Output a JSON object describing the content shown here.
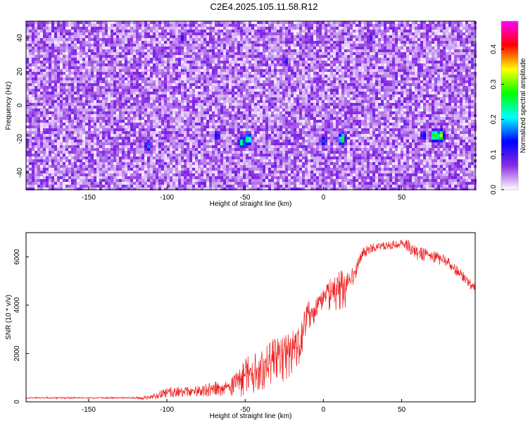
{
  "title": "C2E4.2025.105.11.58.R12",
  "chart_data": [
    {
      "type": "heatmap",
      "xlabel": "Height of straight line (km)",
      "ylabel": "Frequency (Hz)",
      "xlim": [
        -190,
        97
      ],
      "ylim": [
        -50,
        50
      ],
      "xticks": [
        -150,
        -100,
        -50,
        0,
        50
      ],
      "yticks": [
        -40,
        -20,
        0,
        20,
        40
      ],
      "colorbar": {
        "label": "Normalized spectral amplitude",
        "range": [
          0,
          0.48
        ],
        "ticks": [
          "0.0",
          "0.1",
          "0.2",
          "0.3",
          "0.4"
        ],
        "colormap": [
          "#ffffff",
          "#8a2be2",
          "#0000ff",
          "#00ffff",
          "#00ff00",
          "#ffff00",
          "#ff0000",
          "#ff00ff"
        ]
      },
      "features": {
        "background_amplitude": [
          0.02,
          0.08
        ],
        "hot_spots": [
          {
            "x": -112,
            "y": -24,
            "value": 0.18
          },
          {
            "x": -48,
            "y": -20,
            "value": 0.28
          },
          {
            "x": -52,
            "y": -22,
            "value": 0.26
          },
          {
            "x": -68,
            "y": -18,
            "value": 0.15
          },
          {
            "x": 12,
            "y": -20,
            "value": 0.3
          },
          {
            "x": 0,
            "y": -21,
            "value": 0.16
          },
          {
            "x": 64,
            "y": -18,
            "value": 0.15
          },
          {
            "x": 71,
            "y": -18,
            "value": 0.32
          },
          {
            "x": 75,
            "y": -18,
            "value": 0.34
          },
          {
            "x": -90,
            "y": 40,
            "value": 0.12
          },
          {
            "x": -24,
            "y": 26,
            "value": 0.12
          },
          {
            "x": 30,
            "y": 40,
            "value": 0.11
          }
        ]
      }
    },
    {
      "type": "line",
      "xlabel": "Height of straight line (km)",
      "ylabel": "SNR (10 * v/v)",
      "xlim": [
        -190,
        97
      ],
      "ylim": [
        0,
        7000
      ],
      "xticks": [
        -150,
        -100,
        -50,
        0,
        50
      ],
      "yticks": [
        0,
        2000,
        4000,
        6000
      ],
      "grid": false,
      "series": [
        {
          "color": "#ee2222",
          "x": [
            -190,
            -150,
            -120,
            -110,
            -100,
            -80,
            -60,
            -50,
            -40,
            -30,
            -20,
            -15,
            -10,
            -5,
            0,
            5,
            10,
            15,
            20,
            25,
            30,
            40,
            50,
            55,
            60,
            70,
            80,
            90,
            97
          ],
          "y": [
            170,
            170,
            170,
            220,
            450,
            500,
            700,
            1300,
            1500,
            2000,
            2200,
            2600,
            3700,
            3900,
            4400,
            4600,
            4800,
            4900,
            5400,
            6200,
            6400,
            6500,
            6600,
            6500,
            6200,
            6100,
            5800,
            5200,
            4700
          ],
          "spread": [
            60,
            60,
            60,
            220,
            380,
            420,
            650,
            1600,
            1500,
            1800,
            1800,
            1400,
            1300,
            900,
            700,
            1300,
            1500,
            1500,
            600,
            450,
            350,
            300,
            300,
            500,
            500,
            450,
            420,
            400,
            400
          ]
        }
      ]
    }
  ]
}
